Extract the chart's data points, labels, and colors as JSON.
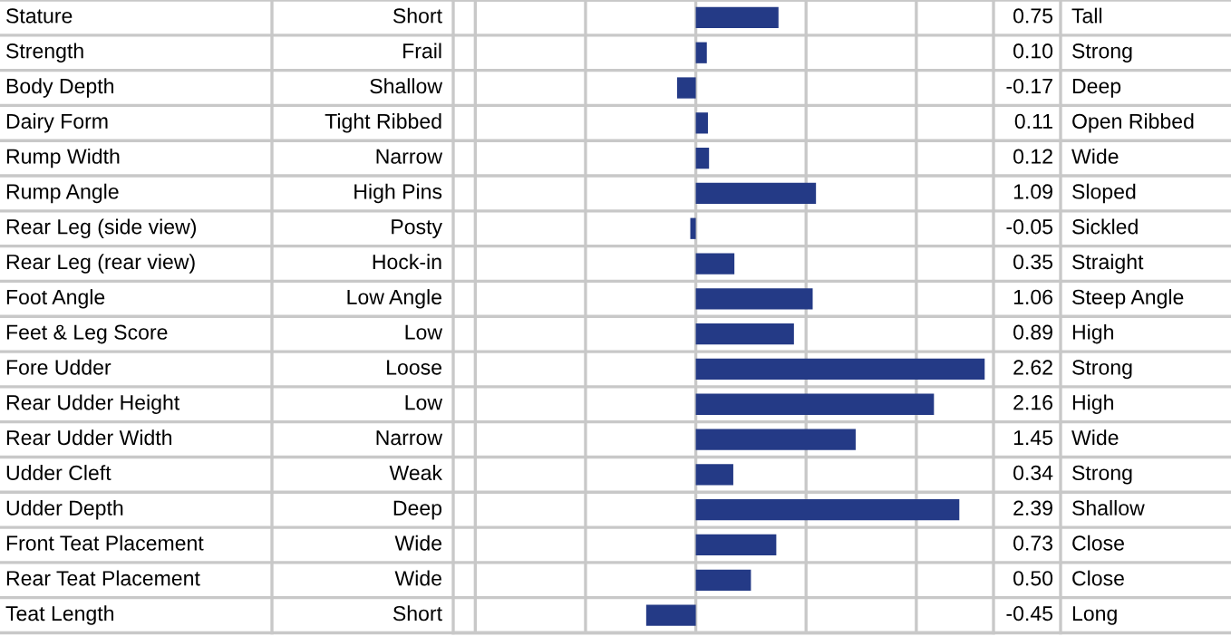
{
  "chart_data": {
    "type": "bar",
    "orientation": "horizontal",
    "categories": [
      "Stature",
      "Strength",
      "Body Depth",
      "Dairy Form",
      "Rump Width",
      "Rump Angle",
      "Rear Leg (side view)",
      "Rear Leg (rear view)",
      "Foot Angle",
      "Feet & Leg Score",
      "Fore Udder",
      "Rear Udder Height",
      "Rear Udder Width",
      "Udder Cleft",
      "Udder Depth",
      "Front Teat Placement",
      "Rear Teat Placement",
      "Teat Length"
    ],
    "values": [
      0.75,
      0.1,
      -0.17,
      0.11,
      0.12,
      1.09,
      -0.05,
      0.35,
      1.06,
      0.89,
      2.62,
      2.16,
      1.45,
      0.34,
      2.39,
      0.73,
      0.5,
      -0.45
    ],
    "value_labels": [
      "0.75",
      "0.10",
      "-0.17",
      "0.11",
      "0.12",
      "1.09",
      "-0.05",
      "0.35",
      "1.06",
      "0.89",
      "2.62",
      "2.16",
      "1.45",
      "0.34",
      "2.39",
      "0.73",
      "0.50",
      "-0.45"
    ],
    "color": "#243a86",
    "annotations": [
      "Short",
      "Frail",
      "Shallow",
      "Tight Ribbed",
      "Narrow",
      "High Pins",
      "Posty",
      "Hock-in",
      "Low Angle",
      "Low",
      "Loose",
      "Low",
      "Narrow",
      "Weak",
      "Deep",
      "Wide",
      "Wide",
      "Short",
      "Tall",
      "Strong",
      "Deep",
      "Open Ribbed",
      "Wide",
      "Sloped",
      "Sickled",
      "Straight",
      "Steep Angle",
      "High",
      "Strong",
      "High",
      "Wide",
      "Strong",
      "Shallow",
      "Close",
      "Close",
      "Long"
    ],
    "xlim": [
      -2.2,
      2.7
    ],
    "xticks": [
      {
        "value": -2,
        "label": null
      },
      {
        "value": -1,
        "label": null
      },
      {
        "value": 0,
        "label": null
      },
      {
        "value": 1,
        "label": null
      },
      {
        "value": 2,
        "label": null
      }
    ],
    "grid": "x"
  }
}
